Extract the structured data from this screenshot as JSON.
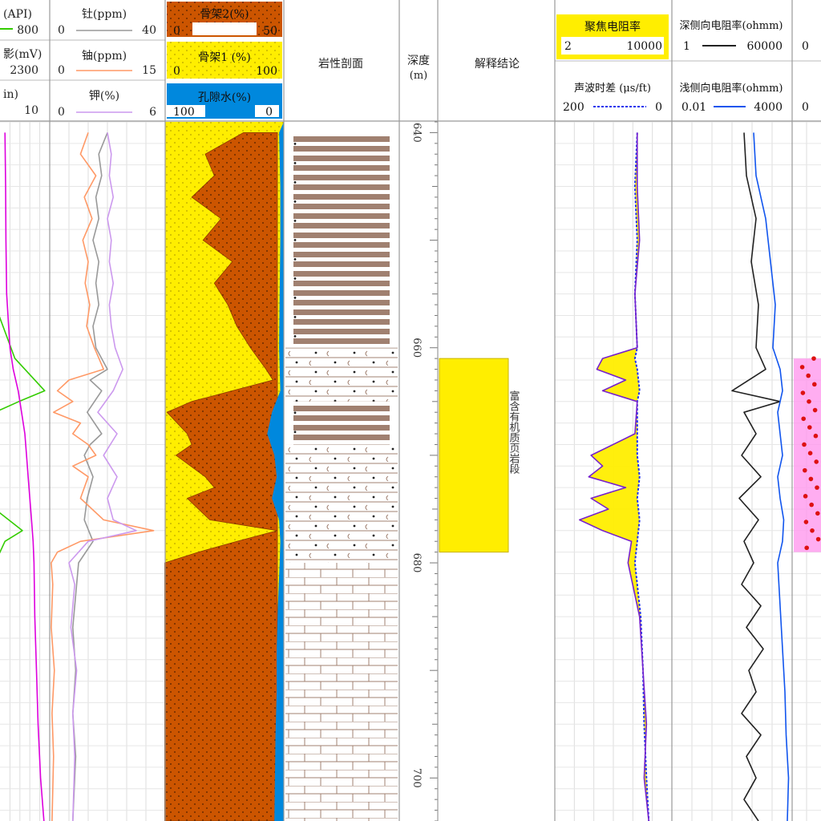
{
  "palette": {
    "gamma": "#33cc00",
    "sp": "#dd00dd",
    "thorium": "#999999",
    "uranium": "#ff9966",
    "potassium": "#cc99ee",
    "matrix2": "#cc5500",
    "matrix1": "#ffee00",
    "water": "#0088dd",
    "resistivity_deep": "#222222",
    "resistivity_shallow": "#1155ee",
    "sonic": "#2233ee",
    "focused": "#7722cc",
    "conclusion_fill": "#ffee00",
    "grid": "#cccccc",
    "lith_brown": "#a08070"
  },
  "headers": {
    "col1": [
      {
        "label": "(API)",
        "min": "",
        "max": "800"
      },
      {
        "label": "影(mV)",
        "min": "",
        "max": "2300"
      },
      {
        "label": "in)",
        "min": "",
        "max": "10"
      }
    ],
    "col2": [
      {
        "label": "钍(ppm)",
        "min": "0",
        "max": "40"
      },
      {
        "label": "铀(ppm)",
        "min": "0",
        "max": "15"
      },
      {
        "label": "钾(%)",
        "min": "0",
        "max": "6"
      }
    ],
    "col3": [
      {
        "label": "骨架2(%)",
        "min": "0",
        "max": "50"
      },
      {
        "label": "骨架1 (%)",
        "min": "0",
        "max": "100"
      },
      {
        "label": "孔隙水(%)",
        "min": "100",
        "max": "0"
      }
    ],
    "lithology": "岩性剖面",
    "depth": "深度",
    "depth_unit": "(m)",
    "conclusion": "解释结论",
    "col7": [
      {
        "label": "聚焦电阻率",
        "min": "2",
        "max": "10000"
      },
      {
        "label": "声波时差 (μs/ft)",
        "min": "200",
        "max": "0"
      }
    ],
    "col8": [
      {
        "label": "深侧向电阻率(ohmm)",
        "min": "1",
        "max": "60000"
      },
      {
        "label": "浅侧向电阻率(ohmm)",
        "min": "0.01",
        "max": "4000"
      }
    ],
    "col9": [
      {
        "label": "",
        "min": "0",
        "max": ""
      },
      {
        "label": "",
        "min": "0",
        "max": ""
      }
    ]
  },
  "conclusion_text": "富含有机质页岩段",
  "chart_data": {
    "type": "line",
    "title": "",
    "ylabel": "深度 (m)",
    "ylim": [
      639,
      704
    ],
    "depth_ticks": [
      640,
      660,
      680,
      700
    ],
    "zones": [
      {
        "name": "富含有机质页岩段",
        "from": 661,
        "to": 679
      }
    ],
    "lithology_intervals": [
      {
        "from": 640,
        "to": 660,
        "type": "banded-shale"
      },
      {
        "from": 660,
        "to": 665,
        "type": "dotted-shale"
      },
      {
        "from": 665,
        "to": 669,
        "type": "banded-shale"
      },
      {
        "from": 669,
        "to": 680,
        "type": "dotted-shale"
      },
      {
        "from": 680,
        "to": 704,
        "type": "limestone-brick"
      }
    ],
    "series": [
      {
        "name": "(API)",
        "key": "gamma",
        "scale": [
          0,
          800
        ],
        "points": [
          [
            640,
            -40
          ],
          [
            650,
            -40
          ],
          [
            656,
            -40
          ],
          [
            661,
            0
          ],
          [
            664,
            60
          ],
          [
            665,
            8
          ],
          [
            666,
            -40
          ],
          [
            672,
            -40
          ],
          [
            675,
            -40
          ],
          [
            677,
            15
          ],
          [
            678,
            -20
          ],
          [
            680,
            -40
          ],
          [
            704,
            -40
          ]
        ]
      },
      {
        "name": "影(mV)",
        "key": "sp",
        "scale": [
          0,
          2300
        ],
        "points": [
          [
            640,
            30
          ],
          [
            645,
            34
          ],
          [
            650,
            36
          ],
          [
            655,
            40
          ],
          [
            660,
            60
          ],
          [
            662,
            80
          ],
          [
            664,
            110
          ],
          [
            666,
            130
          ],
          [
            668,
            150
          ],
          [
            670,
            160
          ],
          [
            672,
            170
          ],
          [
            674,
            180
          ],
          [
            676,
            190
          ],
          [
            678,
            200
          ],
          [
            680,
            205
          ],
          [
            685,
            210
          ],
          [
            690,
            220
          ],
          [
            695,
            230
          ],
          [
            700,
            245
          ],
          [
            704,
            265
          ]
        ]
      },
      {
        "name": "钍(ppm)",
        "key": "thorium",
        "scale": [
          0,
          40
        ],
        "points": [
          [
            640,
            20
          ],
          [
            642,
            17
          ],
          [
            644,
            18
          ],
          [
            646,
            16
          ],
          [
            648,
            17
          ],
          [
            650,
            15
          ],
          [
            652,
            17
          ],
          [
            654,
            16
          ],
          [
            656,
            17
          ],
          [
            658,
            15
          ],
          [
            660,
            16
          ],
          [
            662,
            20
          ],
          [
            663,
            14
          ],
          [
            664,
            18
          ],
          [
            666,
            13
          ],
          [
            668,
            18
          ],
          [
            669,
            14
          ],
          [
            670,
            12
          ],
          [
            672,
            15
          ],
          [
            674,
            13
          ],
          [
            676,
            12
          ],
          [
            678,
            15
          ],
          [
            680,
            10
          ],
          [
            683,
            9
          ],
          [
            686,
            8
          ],
          [
            690,
            9
          ],
          [
            694,
            8
          ],
          [
            698,
            9
          ],
          [
            704,
            8
          ]
        ]
      },
      {
        "name": "铀(ppm)",
        "key": "uranium",
        "scale": [
          0,
          15
        ],
        "points": [
          [
            640,
            5
          ],
          [
            642,
            4
          ],
          [
            644,
            6
          ],
          [
            646,
            4.5
          ],
          [
            648,
            5.5
          ],
          [
            650,
            4.3
          ],
          [
            652,
            5
          ],
          [
            654,
            4.6
          ],
          [
            656,
            5.2
          ],
          [
            658,
            4.8
          ],
          [
            660,
            5.8
          ],
          [
            662,
            7
          ],
          [
            663,
            2.5
          ],
          [
            664,
            1
          ],
          [
            665,
            3
          ],
          [
            666,
            0.5
          ],
          [
            667,
            4
          ],
          [
            668,
            3
          ],
          [
            669,
            5
          ],
          [
            670,
            6
          ],
          [
            671,
            3
          ],
          [
            672,
            5
          ],
          [
            674,
            4
          ],
          [
            676,
            7
          ],
          [
            677,
            13.5
          ],
          [
            678,
            4
          ],
          [
            679,
            1
          ],
          [
            680,
            0.2
          ],
          [
            682,
            0.4
          ],
          [
            686,
            0.2
          ],
          [
            690,
            0.6
          ],
          [
            694,
            0.3
          ],
          [
            698,
            0.5
          ],
          [
            704,
            0.3
          ]
        ]
      },
      {
        "name": "钾(%)",
        "key": "potassium",
        "scale": [
          0,
          6
        ],
        "points": [
          [
            640,
            3
          ],
          [
            642,
            3.2
          ],
          [
            644,
            3.1
          ],
          [
            646,
            3.3
          ],
          [
            648,
            3.0
          ],
          [
            650,
            3.2
          ],
          [
            652,
            3.1
          ],
          [
            654,
            3.3
          ],
          [
            656,
            3.1
          ],
          [
            658,
            3.2
          ],
          [
            660,
            3.4
          ],
          [
            662,
            3.8
          ],
          [
            664,
            3.3
          ],
          [
            666,
            2.5
          ],
          [
            668,
            3.5
          ],
          [
            670,
            2.8
          ],
          [
            672,
            3.5
          ],
          [
            674,
            3.0
          ],
          [
            676,
            3.3
          ],
          [
            677,
            4.5
          ],
          [
            678,
            2.0
          ],
          [
            680,
            1.0
          ],
          [
            682,
            1.3
          ],
          [
            686,
            1.1
          ],
          [
            690,
            1.4
          ],
          [
            694,
            1.2
          ],
          [
            698,
            1.3
          ],
          [
            704,
            1.2
          ]
        ]
      },
      {
        "name": "骨架2(%)",
        "key": "matrix2",
        "scale": [
          0,
          50
        ],
        "points": [
          [
            640,
            15
          ],
          [
            642,
            32
          ],
          [
            644,
            28
          ],
          [
            646,
            38
          ],
          [
            648,
            25
          ],
          [
            650,
            33
          ],
          [
            652,
            20
          ],
          [
            654,
            28
          ],
          [
            656,
            22
          ],
          [
            658,
            18
          ],
          [
            660,
            12
          ],
          [
            662,
            5
          ],
          [
            663,
            2
          ],
          [
            664,
            20
          ],
          [
            665,
            38
          ],
          [
            666,
            49
          ],
          [
            668,
            40
          ],
          [
            669,
            38
          ],
          [
            670,
            45
          ],
          [
            672,
            32
          ],
          [
            673,
            28
          ],
          [
            674,
            40
          ],
          [
            676,
            30
          ],
          [
            677,
            0
          ],
          [
            678,
            18
          ],
          [
            679,
            35
          ],
          [
            680,
            50
          ],
          [
            704,
            50
          ]
        ]
      },
      {
        "name": "孔隙水(%)",
        "key": "water",
        "scale": [
          100,
          0
        ],
        "points": [
          [
            640,
            4
          ],
          [
            645,
            3
          ],
          [
            650,
            3
          ],
          [
            655,
            3.5
          ],
          [
            660,
            4
          ],
          [
            664,
            3
          ],
          [
            666,
            10
          ],
          [
            668,
            14
          ],
          [
            670,
            8
          ],
          [
            672,
            6
          ],
          [
            674,
            10
          ],
          [
            676,
            4
          ],
          [
            678,
            3
          ],
          [
            680,
            3.5
          ],
          [
            684,
            5
          ],
          [
            688,
            6
          ],
          [
            692,
            6
          ],
          [
            696,
            7
          ],
          [
            700,
            7.5
          ],
          [
            704,
            8
          ]
        ]
      },
      {
        "name": "聚焦电阻率",
        "key": "focused",
        "scale": [
          2,
          10000
        ],
        "points": [
          [
            640,
            70
          ],
          [
            645,
            70
          ],
          [
            650,
            72
          ],
          [
            655,
            68
          ],
          [
            660,
            70
          ],
          [
            661,
            40
          ],
          [
            662,
            35
          ],
          [
            663,
            60
          ],
          [
            664,
            40
          ],
          [
            665,
            70
          ],
          [
            668,
            68
          ],
          [
            670,
            30
          ],
          [
            671,
            40
          ],
          [
            672,
            28
          ],
          [
            673,
            60
          ],
          [
            674,
            30
          ],
          [
            675,
            45
          ],
          [
            676,
            20
          ],
          [
            677,
            40
          ],
          [
            678,
            65
          ],
          [
            680,
            62
          ],
          [
            685,
            72
          ],
          [
            690,
            75
          ],
          [
            695,
            78
          ],
          [
            700,
            76
          ],
          [
            704,
            80
          ]
        ]
      },
      {
        "name": "声波时差 (μs/ft)",
        "key": "sonic",
        "scale": [
          200,
          0
        ],
        "points": [
          [
            640,
            70
          ],
          [
            645,
            68
          ],
          [
            650,
            70
          ],
          [
            655,
            68
          ],
          [
            660,
            70
          ],
          [
            661,
            68
          ],
          [
            662,
            70
          ],
          [
            664,
            72
          ],
          [
            665,
            70
          ],
          [
            670,
            70
          ],
          [
            672,
            72
          ],
          [
            674,
            70
          ],
          [
            676,
            72
          ],
          [
            678,
            70
          ],
          [
            680,
            68
          ],
          [
            685,
            73
          ],
          [
            690,
            75
          ],
          [
            695,
            76
          ],
          [
            700,
            78
          ],
          [
            704,
            80
          ]
        ]
      },
      {
        "name": "深侧向电阻率(ohmm)",
        "key": "resistivity_deep",
        "scale": [
          1,
          60000
        ],
        "points": [
          [
            640,
            60
          ],
          [
            644,
            62
          ],
          [
            648,
            70
          ],
          [
            652,
            66
          ],
          [
            656,
            72
          ],
          [
            660,
            70
          ],
          [
            662,
            78
          ],
          [
            664,
            50
          ],
          [
            665,
            90
          ],
          [
            666,
            60
          ],
          [
            668,
            70
          ],
          [
            670,
            58
          ],
          [
            672,
            74
          ],
          [
            674,
            56
          ],
          [
            676,
            72
          ],
          [
            678,
            60
          ],
          [
            680,
            68
          ],
          [
            682,
            58
          ],
          [
            684,
            74
          ],
          [
            686,
            62
          ],
          [
            688,
            76
          ],
          [
            690,
            64
          ],
          [
            692,
            70
          ],
          [
            694,
            58
          ],
          [
            696,
            74
          ],
          [
            698,
            62
          ],
          [
            700,
            70
          ],
          [
            702,
            60
          ],
          [
            704,
            72
          ]
        ]
      },
      {
        "name": "浅侧向电阻率(ohmm)",
        "key": "resistivity_shallow",
        "scale": [
          0.01,
          4000
        ],
        "points": [
          [
            640,
            68
          ],
          [
            644,
            70
          ],
          [
            648,
            78
          ],
          [
            652,
            82
          ],
          [
            656,
            86
          ],
          [
            660,
            84
          ],
          [
            662,
            90
          ],
          [
            664,
            92
          ],
          [
            666,
            88
          ],
          [
            668,
            90
          ],
          [
            670,
            92
          ],
          [
            672,
            88
          ],
          [
            674,
            90
          ],
          [
            676,
            93
          ],
          [
            678,
            92
          ],
          [
            680,
            88
          ],
          [
            684,
            90
          ],
          [
            688,
            92
          ],
          [
            692,
            94
          ],
          [
            696,
            95
          ],
          [
            700,
            97
          ],
          [
            704,
            96
          ]
        ]
      }
    ]
  }
}
